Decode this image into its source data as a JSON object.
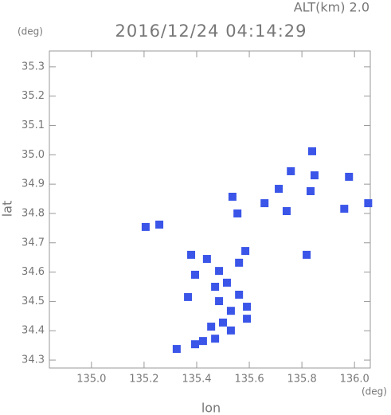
{
  "chart_data": {
    "type": "scatter",
    "title": "2016/12/24 04:14:29",
    "altitude_label": "ALT(km) 2.0",
    "y_unit": "(deg)",
    "x_unit": "(deg)",
    "xlabel": "lon",
    "ylabel": "lat",
    "xlim": [
      134.84,
      136.06
    ],
    "ylim": [
      34.273,
      35.354
    ],
    "xticks": [
      {
        "value": 135.0,
        "label": "135.0"
      },
      135.2,
      135.4,
      135.6,
      135.8,
      {
        "value": 136.0,
        "label": "136.0"
      }
    ],
    "yticks": [
      34.3,
      34.4,
      34.5,
      34.6,
      34.7,
      34.8,
      34.9,
      {
        "value": 35.0,
        "label": "35.0"
      },
      35.1,
      35.2,
      35.3
    ],
    "color": "#3a55e8",
    "x": [
      135.839,
      135.758,
      135.712,
      135.833,
      135.848,
      135.979,
      135.961,
      136.052,
      135.742,
      135.658,
      135.536,
      135.555,
      135.206,
      135.258,
      135.818,
      135.379,
      135.439,
      135.485,
      135.561,
      135.585,
      135.394,
      135.47,
      135.515,
      135.561,
      135.485,
      135.591,
      135.53,
      135.591,
      135.5,
      135.455,
      135.53,
      135.47,
      135.394,
      135.424,
      135.324,
      135.367
    ],
    "values": [
      35.012,
      34.944,
      34.884,
      34.876,
      34.93,
      34.925,
      34.816,
      34.835,
      34.808,
      34.835,
      34.857,
      34.8,
      34.754,
      34.762,
      34.659,
      34.659,
      34.645,
      34.604,
      34.632,
      34.672,
      34.591,
      34.55,
      34.564,
      34.523,
      34.501,
      34.482,
      34.468,
      34.441,
      34.428,
      34.414,
      34.401,
      34.373,
      34.354,
      34.365,
      34.338,
      34.515
    ]
  }
}
